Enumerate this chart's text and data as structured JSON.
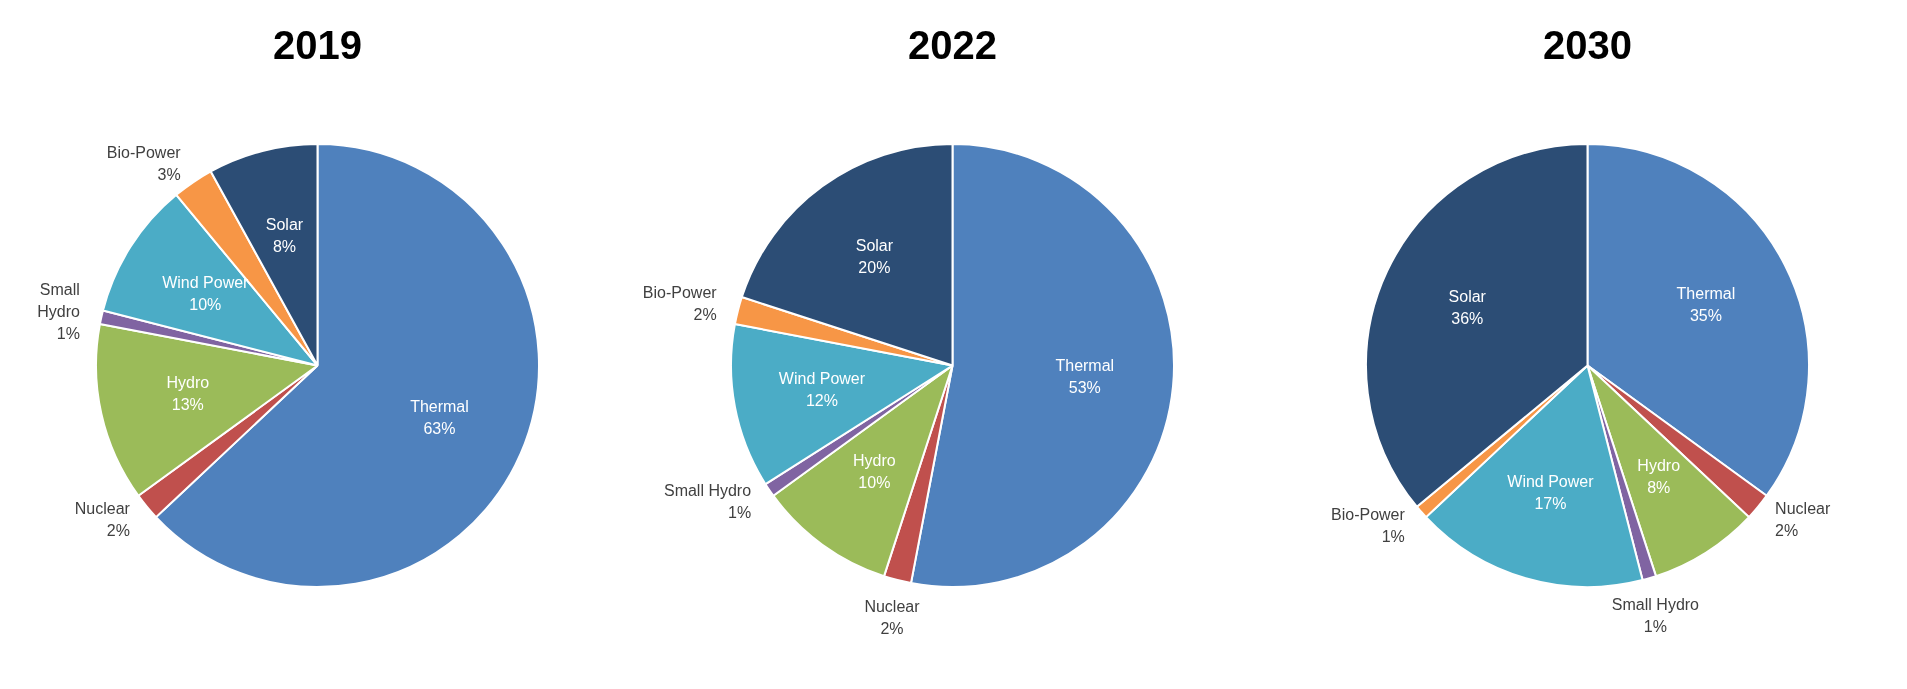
{
  "chart_data": [
    {
      "type": "pie",
      "title": "2019",
      "categories": [
        "Thermal",
        "Nuclear",
        "Hydro",
        "Small Hydro",
        "Wind Power",
        "Bio-Power",
        "Solar"
      ],
      "values": [
        63,
        2,
        13,
        1,
        10,
        3,
        8
      ],
      "value_labels": [
        "63%",
        "2%",
        "13%",
        "1%",
        "10%",
        "3%",
        "8%"
      ],
      "colors": [
        "#4f81bd",
        "#c0504d",
        "#9bbb59",
        "#8064a2",
        "#4bacc6",
        "#f79646",
        "#2c4d75"
      ],
      "legend": false
    },
    {
      "type": "pie",
      "title": "2022",
      "categories": [
        "Thermal",
        "Nuclear",
        "Hydro",
        "Small Hydro",
        "Wind Power",
        "Bio-Power",
        "Solar"
      ],
      "values": [
        53,
        2,
        10,
        1,
        12,
        2,
        20
      ],
      "value_labels": [
        "53%",
        "2%",
        "10%",
        "1%",
        "12%",
        "2%",
        "20%"
      ],
      "colors": [
        "#4f81bd",
        "#c0504d",
        "#9bbb59",
        "#8064a2",
        "#4bacc6",
        "#f79646",
        "#2c4d75"
      ],
      "legend": false
    },
    {
      "type": "pie",
      "title": "2030",
      "categories": [
        "Thermal",
        "Nuclear",
        "Hydro",
        "Small Hydro",
        "Wind Power",
        "Bio-Power",
        "Solar"
      ],
      "values": [
        35,
        2,
        8,
        1,
        17,
        1,
        36
      ],
      "value_labels": [
        "35%",
        "2%",
        "8%",
        "1%",
        "17%",
        "1%",
        "36%"
      ],
      "colors": [
        "#4f81bd",
        "#c0504d",
        "#9bbb59",
        "#8064a2",
        "#4bacc6",
        "#f79646",
        "#2c4d75"
      ],
      "legend": false
    }
  ]
}
